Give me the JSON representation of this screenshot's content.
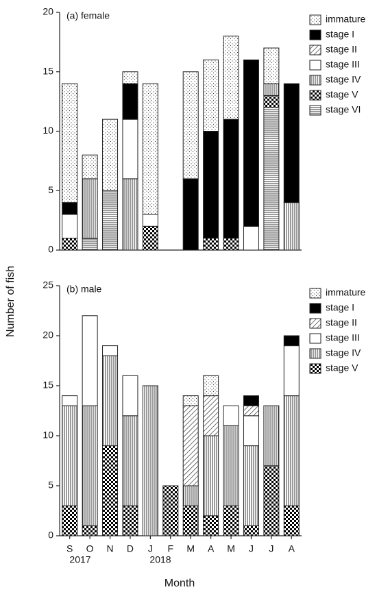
{
  "y_label": "Number of fish",
  "x_label": "Month",
  "year_labels": [
    "2017",
    "2018"
  ],
  "chart_data": [
    {
      "type": "bar",
      "stacked": true,
      "title": "(a) female",
      "legend": "upper right",
      "categories": [
        null,
        null,
        null,
        null,
        null,
        null,
        null,
        null,
        null,
        null,
        null,
        null
      ],
      "ylim": [
        0,
        20
      ],
      "yticks": [
        0,
        5,
        10,
        15,
        20
      ],
      "series": [
        {
          "name": "stage VI",
          "pattern": "horizontal",
          "values": [
            0,
            1,
            5,
            0,
            0,
            0,
            0,
            0,
            0,
            0,
            12,
            0
          ]
        },
        {
          "name": "stage V",
          "pattern": "checker",
          "values": [
            1,
            0,
            0,
            0,
            2,
            0,
            0,
            1,
            1,
            0,
            1,
            0
          ]
        },
        {
          "name": "stage IV",
          "pattern": "vertical",
          "values": [
            0,
            5,
            0,
            6,
            0,
            0,
            0,
            0,
            0,
            0,
            1,
            4
          ]
        },
        {
          "name": "stage III",
          "pattern": "none",
          "values": [
            2,
            0,
            0,
            5,
            1,
            0,
            0,
            0,
            0,
            2,
            0,
            0
          ]
        },
        {
          "name": "stage II",
          "pattern": "diagonal",
          "values": [
            0,
            0,
            0,
            0,
            0,
            0,
            0,
            0,
            0,
            0,
            0,
            0
          ]
        },
        {
          "name": "stage I",
          "pattern": "solid",
          "values": [
            1,
            0,
            0,
            3,
            0,
            0,
            6,
            9,
            10,
            14,
            0,
            10
          ]
        },
        {
          "name": "immature",
          "pattern": "dots",
          "values": [
            10,
            2,
            6,
            1,
            11,
            0,
            9,
            6,
            7,
            0,
            3,
            0
          ]
        }
      ]
    },
    {
      "type": "bar",
      "stacked": true,
      "title": "(b) male",
      "legend": "upper right",
      "categories": [
        "S",
        "O",
        "N",
        "D",
        "J",
        "F",
        "M",
        "A",
        "M",
        "J",
        "J",
        "A"
      ],
      "ylim": [
        0,
        25
      ],
      "yticks": [
        0,
        5,
        10,
        15,
        20,
        25
      ],
      "series": [
        {
          "name": "stage V",
          "pattern": "checker",
          "values": [
            3,
            1,
            9,
            3,
            0,
            5,
            3,
            2,
            3,
            1,
            7,
            3
          ]
        },
        {
          "name": "stage IV",
          "pattern": "vertical",
          "values": [
            10,
            12,
            9,
            9,
            15,
            0,
            2,
            8,
            8,
            8,
            6,
            11
          ]
        },
        {
          "name": "stage III",
          "pattern": "none",
          "values": [
            1,
            9,
            1,
            4,
            0,
            0,
            0,
            0,
            2,
            3,
            0,
            5
          ]
        },
        {
          "name": "stage II",
          "pattern": "diagonal",
          "values": [
            0,
            0,
            0,
            0,
            0,
            0,
            8,
            4,
            0,
            1,
            0,
            0
          ]
        },
        {
          "name": "stage I",
          "pattern": "solid",
          "values": [
            0,
            0,
            0,
            0,
            0,
            0,
            0,
            0,
            0,
            1,
            0,
            1
          ]
        },
        {
          "name": "immature",
          "pattern": "dots",
          "values": [
            0,
            0,
            0,
            0,
            0,
            0,
            1,
            2,
            0,
            0,
            0,
            0
          ]
        }
      ]
    }
  ]
}
